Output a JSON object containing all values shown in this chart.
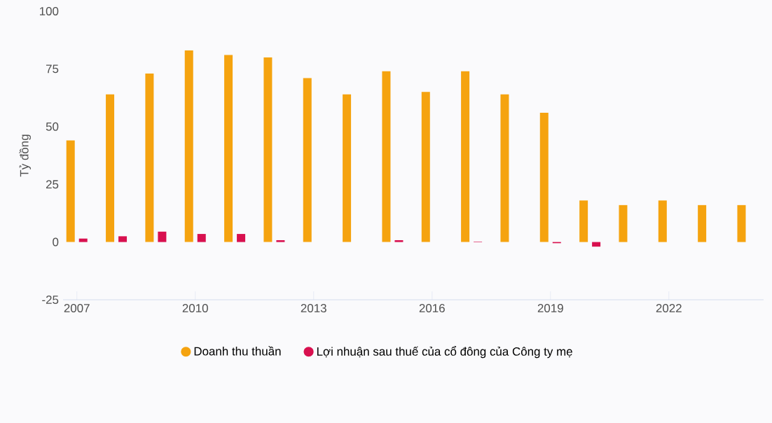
{
  "chart_data": {
    "type": "bar",
    "ylabel": "Tỷ đồng",
    "x": [
      2007,
      2008,
      2009,
      2010,
      2011,
      2012,
      2013,
      2014,
      2015,
      2016,
      2017,
      2018,
      2019,
      2020,
      2021,
      2022,
      2023,
      2024
    ],
    "series": [
      {
        "name": "Doanh thu thuần",
        "color": "#f5a30f",
        "values": [
          44,
          64,
          73,
          83,
          81,
          80,
          71,
          64,
          74,
          65,
          74,
          64,
          56,
          18,
          16,
          18,
          16,
          16
        ]
      },
      {
        "name": "Lợi nhuận sau thuế của cổ đông của Công ty mẹ",
        "color": "#d8104f",
        "values": [
          1.5,
          2.5,
          4.5,
          3.5,
          3.5,
          0.8,
          0,
          0,
          0.8,
          0,
          0.2,
          0,
          -0.5,
          -2,
          0,
          0,
          0,
          0
        ]
      }
    ],
    "xlim": [
      2006.65,
      2024.4
    ],
    "ylim": [
      -25,
      100
    ],
    "xticks": [
      2007,
      2010,
      2013,
      2016,
      2019,
      2022
    ],
    "yticks": [
      -25,
      0,
      25,
      50,
      75,
      100
    ],
    "legend": "bottom"
  }
}
